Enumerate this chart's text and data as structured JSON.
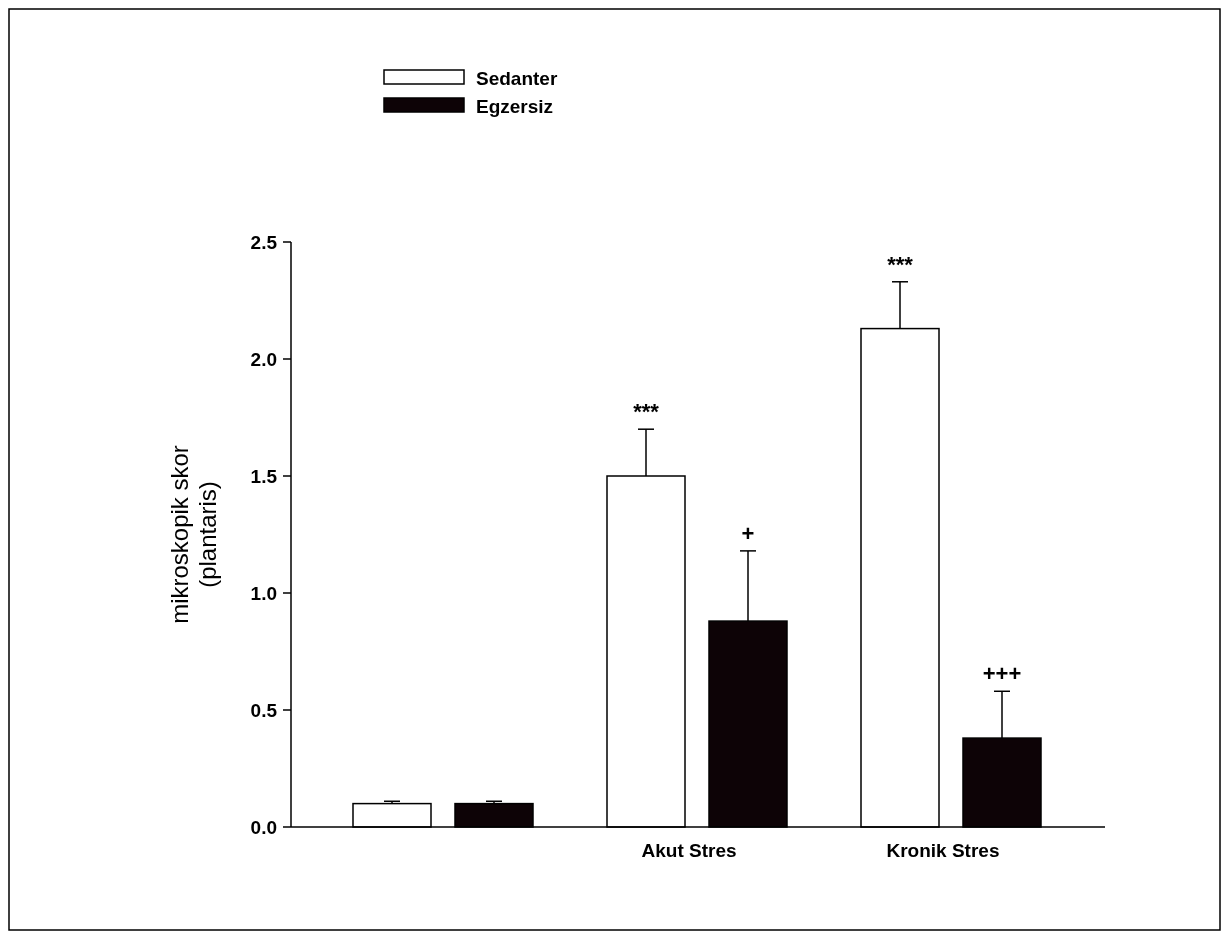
{
  "chart_data": {
    "type": "bar",
    "ylabel": "mikroskopik skor\n(plantaris)",
    "categories": [
      null,
      "Akut Stres",
      "Kronik Stres"
    ],
    "series": [
      {
        "name": "Sedanter",
        "color": "#ffffff",
        "values": [
          0.1,
          1.5,
          2.13
        ],
        "errors": [
          0.01,
          0.2,
          0.2
        ]
      },
      {
        "name": "Egzersiz",
        "color": "#0d0306",
        "values": [
          0.1,
          0.88,
          0.38
        ],
        "errors": [
          0.01,
          0.3,
          0.2
        ]
      }
    ],
    "ylim": [
      0,
      2.5
    ],
    "yticks": [
      {
        "value": 0,
        "label": "0.0"
      },
      {
        "value": 0.5,
        "label": "0.5"
      },
      {
        "value": 1,
        "label": "1.0"
      },
      {
        "value": 1.5,
        "label": "1.5"
      },
      {
        "value": 2,
        "label": "2.0"
      },
      {
        "value": 2.5,
        "label": "2.5"
      }
    ],
    "legend": "top left",
    "annotations": [
      {
        "text": "***",
        "x": "Akut Stres",
        "y": 1.5
      },
      {
        "text": "+",
        "x": "Akut Stres",
        "y": 1.18
      },
      {
        "text": "***",
        "x": "Kronik Stres",
        "y": 2.13
      },
      {
        "text": "+++",
        "x": "Kronik Stres",
        "y": 0.58
      }
    ]
  }
}
